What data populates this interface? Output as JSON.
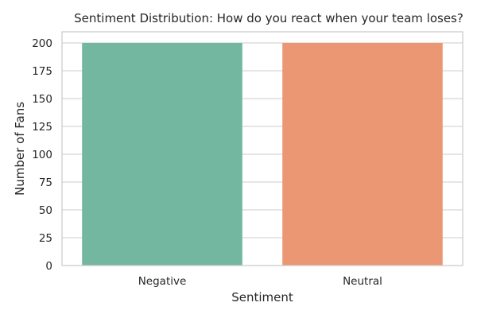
{
  "chart_data": {
    "type": "bar",
    "title": "Sentiment Distribution: How do you react when your team loses?",
    "xlabel": "Sentiment",
    "ylabel": "Number of Fans",
    "categories": [
      "Negative",
      "Neutral"
    ],
    "values": [
      200,
      200
    ],
    "colors": [
      "#73b7a1",
      "#eb9773"
    ],
    "ylim": [
      0,
      210
    ],
    "yticks": [
      0,
      25,
      50,
      75,
      100,
      125,
      150,
      175,
      200
    ],
    "grid": true,
    "legend": "none"
  }
}
